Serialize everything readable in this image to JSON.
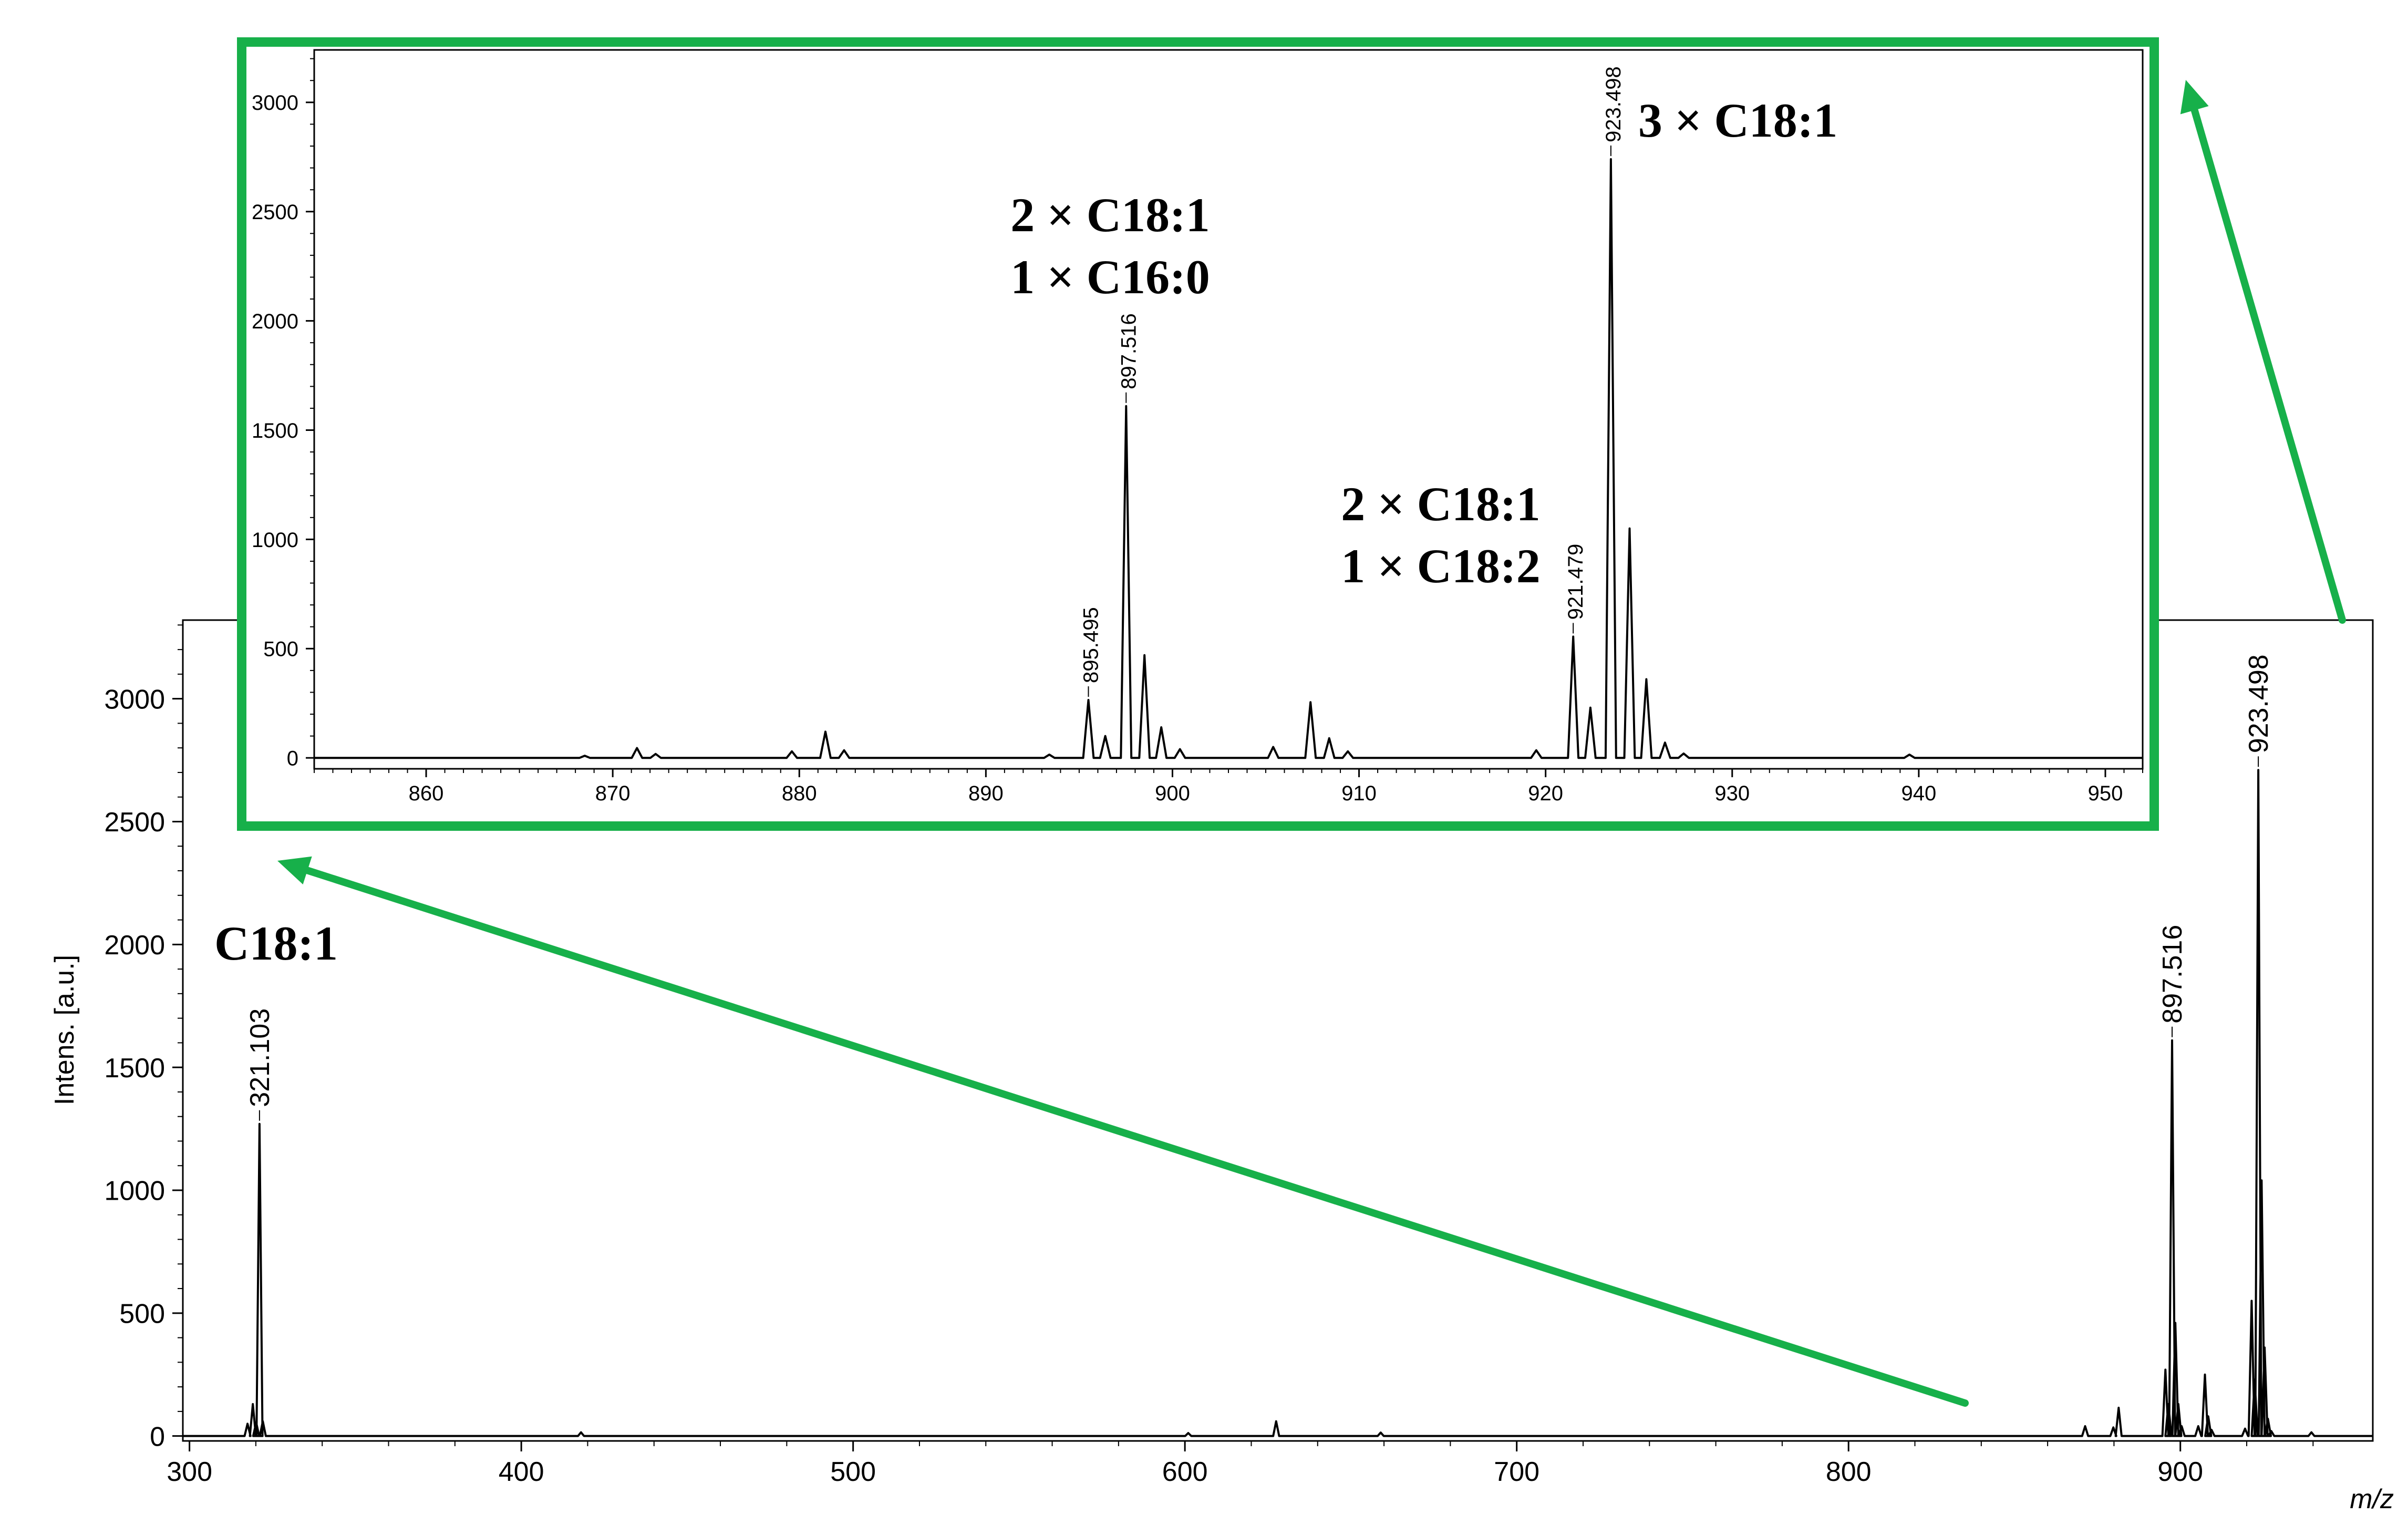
{
  "colors": {
    "frame": "#17b04a",
    "annotation": "#1a6fb5",
    "trace": "#000000"
  },
  "chart_data": [
    {
      "type": "line",
      "xlabel": "m/z",
      "ylabel": "Intens. [a.u.]",
      "xlim": [
        298,
        958
      ],
      "ylim": [
        -20,
        3320
      ],
      "x_ticks": [
        300,
        400,
        500,
        600,
        700,
        800,
        900
      ],
      "y_ticks": [
        0,
        500,
        1000,
        1500,
        2000,
        2500,
        3000
      ],
      "peaks": [
        {
          "mz": 317.5,
          "intensity": 50
        },
        {
          "mz": 319.1,
          "intensity": 130
        },
        {
          "mz": 320.1,
          "intensity": 55
        },
        {
          "mz": 321.103,
          "intensity": 1270
        },
        {
          "mz": 322.1,
          "intensity": 60
        },
        {
          "mz": 418.0,
          "intensity": 15
        },
        {
          "mz": 601.0,
          "intensity": 12
        },
        {
          "mz": 627.5,
          "intensity": 60
        },
        {
          "mz": 659.0,
          "intensity": 14
        },
        {
          "mz": 871.3,
          "intensity": 40
        },
        {
          "mz": 879.8,
          "intensity": 35
        },
        {
          "mz": 881.4,
          "intensity": 115
        },
        {
          "mz": 895.495,
          "intensity": 270
        },
        {
          "mz": 896.4,
          "intensity": 130
        },
        {
          "mz": 897.516,
          "intensity": 1610
        },
        {
          "mz": 898.5,
          "intensity": 460
        },
        {
          "mz": 899.4,
          "intensity": 130
        },
        {
          "mz": 900.4,
          "intensity": 40
        },
        {
          "mz": 905.4,
          "intensity": 40
        },
        {
          "mz": 907.4,
          "intensity": 250
        },
        {
          "mz": 908.4,
          "intensity": 80
        },
        {
          "mz": 909.4,
          "intensity": 25
        },
        {
          "mz": 919.5,
          "intensity": 30
        },
        {
          "mz": 921.479,
          "intensity": 550
        },
        {
          "mz": 922.4,
          "intensity": 230
        },
        {
          "mz": 923.498,
          "intensity": 2710
        },
        {
          "mz": 924.5,
          "intensity": 1040
        },
        {
          "mz": 925.4,
          "intensity": 360
        },
        {
          "mz": 926.4,
          "intensity": 70
        },
        {
          "mz": 927.4,
          "intensity": 20
        },
        {
          "mz": 939.5,
          "intensity": 15
        }
      ],
      "peak_labels": [
        {
          "mz": 321.103,
          "intensity": 1270,
          "text": "321.103"
        },
        {
          "mz": 897.516,
          "intensity": 1610,
          "text": "897.516"
        },
        {
          "mz": 923.498,
          "intensity": 2710,
          "text": "923.498"
        }
      ],
      "annotations": [
        {
          "text": "C18:1",
          "mz": 321.103
        }
      ]
    },
    {
      "type": "line",
      "xlim": [
        854,
        952
      ],
      "ylim": [
        -50,
        3240
      ],
      "x_ticks": [
        860,
        870,
        880,
        890,
        900,
        910,
        920,
        930,
        940,
        950
      ],
      "y_ticks": [
        0,
        500,
        1000,
        1500,
        2000,
        2500,
        3000
      ],
      "peaks": [
        {
          "mz": 868.5,
          "intensity": 10
        },
        {
          "mz": 871.3,
          "intensity": 45
        },
        {
          "mz": 872.3,
          "intensity": 18
        },
        {
          "mz": 879.6,
          "intensity": 30
        },
        {
          "mz": 881.4,
          "intensity": 120
        },
        {
          "mz": 882.4,
          "intensity": 35
        },
        {
          "mz": 893.4,
          "intensity": 15
        },
        {
          "mz": 895.495,
          "intensity": 265
        },
        {
          "mz": 896.4,
          "intensity": 100
        },
        {
          "mz": 897.516,
          "intensity": 1610
        },
        {
          "mz": 898.5,
          "intensity": 470
        },
        {
          "mz": 899.4,
          "intensity": 140
        },
        {
          "mz": 900.4,
          "intensity": 40
        },
        {
          "mz": 905.4,
          "intensity": 50
        },
        {
          "mz": 907.4,
          "intensity": 255
        },
        {
          "mz": 908.4,
          "intensity": 90
        },
        {
          "mz": 909.4,
          "intensity": 30
        },
        {
          "mz": 919.5,
          "intensity": 35
        },
        {
          "mz": 921.479,
          "intensity": 555
        },
        {
          "mz": 922.4,
          "intensity": 230
        },
        {
          "mz": 923.498,
          "intensity": 2740
        },
        {
          "mz": 924.5,
          "intensity": 1050
        },
        {
          "mz": 925.4,
          "intensity": 360
        },
        {
          "mz": 926.4,
          "intensity": 70
        },
        {
          "mz": 927.4,
          "intensity": 20
        },
        {
          "mz": 939.5,
          "intensity": 15
        }
      ],
      "peak_labels": [
        {
          "mz": 895.495,
          "intensity": 265,
          "text": "895.495"
        },
        {
          "mz": 897.516,
          "intensity": 1610,
          "text": "897.516"
        },
        {
          "mz": 921.479,
          "intensity": 555,
          "text": "921.479"
        },
        {
          "mz": 923.498,
          "intensity": 2740,
          "text": "923.498"
        }
      ],
      "annotations": [
        {
          "lines": [
            "2 × C18:1",
            "1 × C16:0"
          ],
          "mz": 897.516
        },
        {
          "lines": [
            "2 × C18:1",
            "1 × C18:2"
          ],
          "mz": 921.479
        },
        {
          "lines": [
            "3 × C18:1"
          ],
          "mz": 923.498
        }
      ]
    }
  ]
}
